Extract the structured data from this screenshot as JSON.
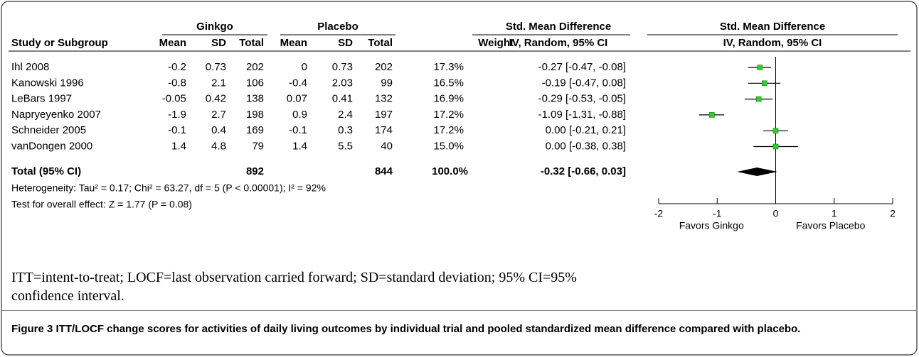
{
  "table": {
    "group_headers": [
      "Ginkgo",
      "Placebo",
      "Std. Mean Difference",
      "Std. Mean Difference"
    ],
    "columns": [
      "Study or Subgroup",
      "Mean",
      "SD",
      "Total",
      "Mean",
      "SD",
      "Total",
      "Weight",
      "IV, Random, 95% CI",
      "IV, Random, 95% CI"
    ],
    "rows": [
      [
        "Ihl 2008",
        "-0.2",
        "0.73",
        "202",
        "0",
        "0.73",
        "202",
        "17.3%",
        "-0.27 [-0.47, -0.08]"
      ],
      [
        "Kanowski 1996",
        "-0.8",
        "2.1",
        "106",
        "-0.4",
        "2.03",
        "99",
        "16.5%",
        "-0.19 [-0.47, 0.08]"
      ],
      [
        "LeBars 1997",
        "-0.05",
        "0.42",
        "138",
        "0.07",
        "0.41",
        "132",
        "16.9%",
        "-0.29 [-0.53, -0.05]"
      ],
      [
        "Napryeyenko 2007",
        "-1.9",
        "2.7",
        "198",
        "0.9",
        "2.4",
        "197",
        "17.2%",
        "-1.09 [-1.31, -0.88]"
      ],
      [
        "Schneider 2005",
        "-0.1",
        "0.4",
        "169",
        "-0.1",
        "0.3",
        "174",
        "17.2%",
        "0.00 [-0.21, 0.21]"
      ],
      [
        "vanDongen 2000",
        "1.4",
        "4.8",
        "79",
        "1.4",
        "5.5",
        "40",
        "15.0%",
        "0.00 [-0.38, 0.38]"
      ]
    ],
    "total": [
      "Total (95% CI)",
      "892",
      "844",
      "100.0%",
      "-0.32 [-0.66, 0.03]"
    ],
    "heterogeneity": "Heterogeneity: Tau² = 0.17; Chi² = 63.27, df = 5 (P < 0.00001); I² = 92%",
    "overall_effect": "Test for overall effect: Z = 1.77 (P = 0.08)"
  },
  "chart_data": {
    "type": "forest",
    "estimates": [
      -0.27,
      -0.19,
      -0.29,
      -1.09,
      0.0,
      0.0
    ],
    "lower": [
      -0.47,
      -0.47,
      -0.53,
      -1.31,
      -0.21,
      -0.38
    ],
    "upper": [
      -0.08,
      0.08,
      -0.05,
      -0.88,
      0.21,
      0.38
    ],
    "pooled": {
      "estimate": -0.32,
      "lower": -0.66,
      "upper": 0.03
    },
    "color": "#33cc33",
    "xlim": [
      -2,
      2
    ],
    "xticks": [
      -2,
      -1,
      0,
      1,
      2
    ],
    "left_label": "Favors Ginkgo",
    "right_label": "Favors Placebo"
  },
  "footnote": "ITT=intent-to-treat; LOCF=last observation carried forward; SD=standard deviation; 95% CI=95% confidence interval.",
  "caption": {
    "label": "Figure 3",
    "text": "ITT/LOCF change scores for activities of daily living outcomes by individual trial and pooled standardized mean difference compared with placebo."
  }
}
